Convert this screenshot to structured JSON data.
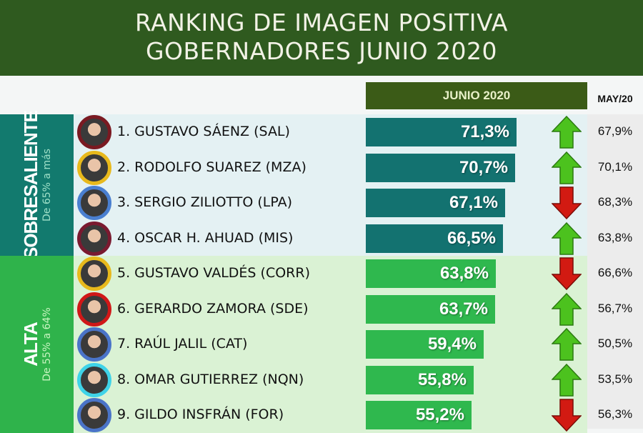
{
  "chart_data": {
    "type": "bar",
    "title": [
      "RANKING DE IMAGEN POSITIVA",
      "GOBERNADORES JUNIO 2020"
    ],
    "series": [
      {
        "name": "JUNIO 2020",
        "values": [
          71.3,
          70.7,
          67.1,
          66.5,
          63.8,
          63.7,
          59.4,
          55.8,
          55.2
        ]
      },
      {
        "name": "MAY/20",
        "values": [
          67.9,
          70.1,
          68.3,
          63.8,
          66.6,
          56.7,
          50.5,
          53.5,
          56.3
        ]
      }
    ],
    "categories": [
      "1. GUSTAVO SÁENZ (SAL)",
      "2. RODOLFO SUAREZ (MZA)",
      "3. SERGIO ZILIOTTO (LPA)",
      "4. OSCAR H. AHUAD  (MIS)",
      "5. GUSTAVO VALDÉS  (CORR)",
      "6. GERARDO ZAMORA (SDE)",
      "7. RAÚL JALIL (CAT)",
      "8. OMAR GUTIERREZ (NQN)",
      "9. GILDO INSFRÁN (FOR)"
    ],
    "labels": [
      "71,3%",
      "70,7%",
      "67,1%",
      "66,5%",
      "63,8%",
      "63,7%",
      "59,4%",
      "55,8%",
      "55,2%"
    ],
    "prev_labels": [
      "67,9%",
      "70,1%",
      "68,3%",
      "63,8%",
      "66,6%",
      "56,7%",
      "50,5%",
      "53,5%",
      "56,3%"
    ],
    "trend": [
      "up",
      "up",
      "down",
      "up",
      "down",
      "up",
      "up",
      "up",
      "down"
    ],
    "groups": [
      {
        "name": "SOBRESALIENTE",
        "range": "De 65% a más",
        "rows": 4,
        "panel_color": "#127a6e",
        "bar_color": "#137270",
        "band_color": "#e4f1f3",
        "range_color": "#9fe0c8"
      },
      {
        "name": "ALTA",
        "range": "De 55% a  64%",
        "rows": 5,
        "panel_color": "#2fb34b",
        "bar_color": "#2fb84e",
        "band_color": "#daf2d4",
        "range_color": "#c8f5c0"
      }
    ],
    "avatar_ring_colors": [
      "#7a1a22",
      "#e8b91c",
      "#4a7fd0",
      "#7a1a30",
      "#e8b91c",
      "#d01818",
      "#4a74c8",
      "#3fd3e8",
      "#4a74c8"
    ]
  }
}
